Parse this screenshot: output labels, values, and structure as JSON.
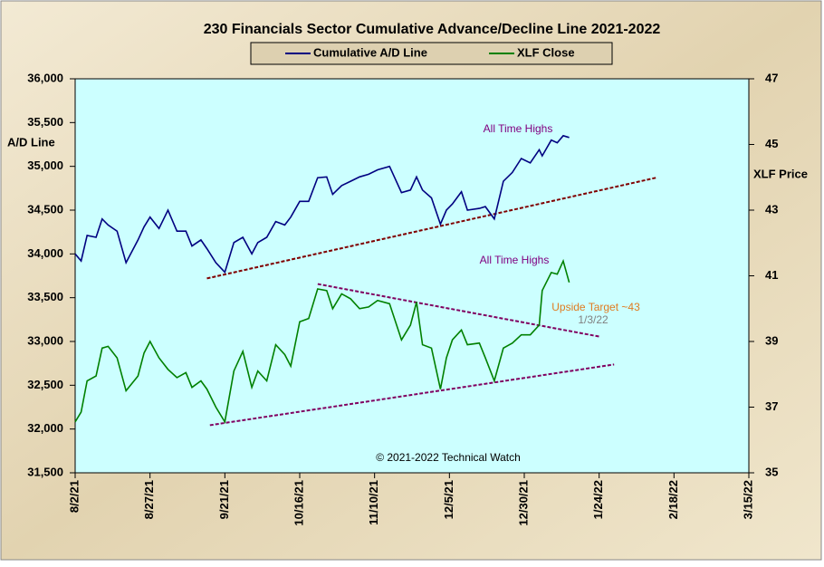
{
  "chart_data": {
    "type": "line",
    "title": "230 Financials  Sector Cumulative  Advance/Decline  Line 2021-2022",
    "ylabel": "A/D Line",
    "y2label": "XLF Price",
    "x": [
      "2021-08-02",
      "2021-08-04",
      "2021-08-06",
      "2021-08-09",
      "2021-08-11",
      "2021-08-13",
      "2021-08-16",
      "2021-08-19",
      "2021-08-23",
      "2021-08-25",
      "2021-08-27",
      "2021-08-30",
      "2021-09-02",
      "2021-09-05",
      "2021-09-08",
      "2021-09-10",
      "2021-09-13",
      "2021-09-15",
      "2021-09-18",
      "2021-09-21",
      "2021-09-24",
      "2021-09-27",
      "2021-09-30",
      "2021-10-02",
      "2021-10-05",
      "2021-10-08",
      "2021-10-11",
      "2021-10-13",
      "2021-10-16",
      "2021-10-19",
      "2021-10-22",
      "2021-10-25",
      "2021-10-27",
      "2021-10-30",
      "2021-11-02",
      "2021-11-05",
      "2021-11-08",
      "2021-11-11",
      "2021-11-15",
      "2021-11-19",
      "2021-11-22",
      "2021-11-24",
      "2021-11-26",
      "2021-11-29",
      "2021-12-02",
      "2021-12-04",
      "2021-12-06",
      "2021-12-09",
      "2021-12-11",
      "2021-12-15",
      "2021-12-17",
      "2021-12-20",
      "2021-12-23",
      "2021-12-26",
      "2021-12-29",
      "2022-01-01",
      "2022-01-04",
      "2022-01-05",
      "2022-01-08",
      "2022-01-10",
      "2022-01-12",
      "2022-01-14"
    ],
    "series": [
      {
        "name": "Cumulative A/D Line",
        "color": "#000080",
        "axis": "y",
        "values": [
          34000,
          33920,
          34210,
          34190,
          34400,
          34330,
          34260,
          33900,
          34160,
          34310,
          34420,
          34290,
          34500,
          34260,
          34260,
          34090,
          34160,
          34060,
          33900,
          33790,
          34130,
          34190,
          34000,
          34130,
          34190,
          34370,
          34330,
          34420,
          34600,
          34600,
          34870,
          34880,
          34680,
          34780,
          34830,
          34880,
          34910,
          34960,
          35000,
          34700,
          34730,
          34880,
          34730,
          34640,
          34340,
          34500,
          34570,
          34710,
          34500,
          34520,
          34540,
          34400,
          34830,
          34930,
          35090,
          35040,
          35190,
          35120,
          35300,
          35270,
          35350,
          35330
        ]
      },
      {
        "name": "XLF Close",
        "color": "#008000",
        "axis": "y2",
        "values": [
          36.55,
          36.85,
          37.8,
          37.95,
          38.8,
          38.85,
          38.5,
          37.5,
          37.95,
          38.65,
          39.0,
          38.5,
          38.15,
          37.9,
          38.05,
          37.6,
          37.8,
          37.55,
          37.0,
          36.55,
          38.1,
          38.7,
          37.6,
          38.1,
          37.8,
          38.9,
          38.6,
          38.25,
          39.6,
          39.7,
          40.6,
          40.55,
          40.0,
          40.45,
          40.3,
          40.0,
          40.05,
          40.25,
          40.15,
          39.05,
          39.5,
          40.2,
          38.9,
          38.8,
          37.55,
          38.5,
          39.05,
          39.35,
          38.9,
          38.95,
          38.5,
          37.8,
          38.8,
          38.95,
          39.2,
          39.2,
          39.5,
          40.55,
          41.1,
          41.05,
          41.45,
          40.8
        ]
      }
    ],
    "trendlines": [
      {
        "x": [
          "2021-09-15",
          "2022-02-12"
        ],
        "values": [
          33720,
          34870
        ],
        "axis": "y",
        "color": "#800000"
      },
      {
        "x": [
          "2021-10-22",
          "2022-01-24"
        ],
        "values": [
          40.75,
          39.15
        ],
        "axis": "y2",
        "color": "#800060"
      },
      {
        "x": [
          "2021-09-16",
          "2022-01-29"
        ],
        "values": [
          36.45,
          38.3
        ],
        "axis": "y2",
        "color": "#800060"
      }
    ],
    "annotations": [
      "All Time Highs",
      "All Time Highs",
      "Upside Target ~43",
      "1/3/22",
      "© 2021-2022  Technical Watch"
    ],
    "xlim": [
      "2021-08-02",
      "2022-03-15"
    ],
    "xticks": [
      {
        "value": "2021-08-02",
        "label": "8/2/21"
      },
      {
        "value": "2021-08-27",
        "label": "8/27/21"
      },
      {
        "value": "2021-09-21",
        "label": "9/21/21"
      },
      {
        "value": "2021-10-16",
        "label": "10/16/21"
      },
      {
        "value": "2021-11-10",
        "label": "11/10/21"
      },
      {
        "value": "2021-12-05",
        "label": "12/5/21"
      },
      {
        "value": "2021-12-30",
        "label": "12/30/21"
      },
      {
        "value": "2022-01-24",
        "label": "1/24/22"
      },
      {
        "value": "2022-02-18",
        "label": "2/18/22"
      },
      {
        "value": "2022-03-15",
        "label": "3/15/22"
      }
    ],
    "ylim": [
      31500,
      36000
    ],
    "yticks": [
      {
        "value": 31500,
        "label": "31,500"
      },
      {
        "value": 32000,
        "label": "32,000"
      },
      {
        "value": 32500,
        "label": "32,500"
      },
      {
        "value": 33000,
        "label": "33,000"
      },
      {
        "value": 33500,
        "label": "33,500"
      },
      {
        "value": 34000,
        "label": "34,000"
      },
      {
        "value": 34500,
        "label": "34,500"
      },
      {
        "value": 35000,
        "label": "35,000"
      },
      {
        "value": 35500,
        "label": "35,500"
      },
      {
        "value": 36000,
        "label": "36,000"
      }
    ],
    "y2lim": [
      35,
      47
    ],
    "y2ticks": [
      35,
      37,
      39,
      41,
      43,
      45,
      47
    ],
    "grid": false,
    "legend": "top"
  }
}
